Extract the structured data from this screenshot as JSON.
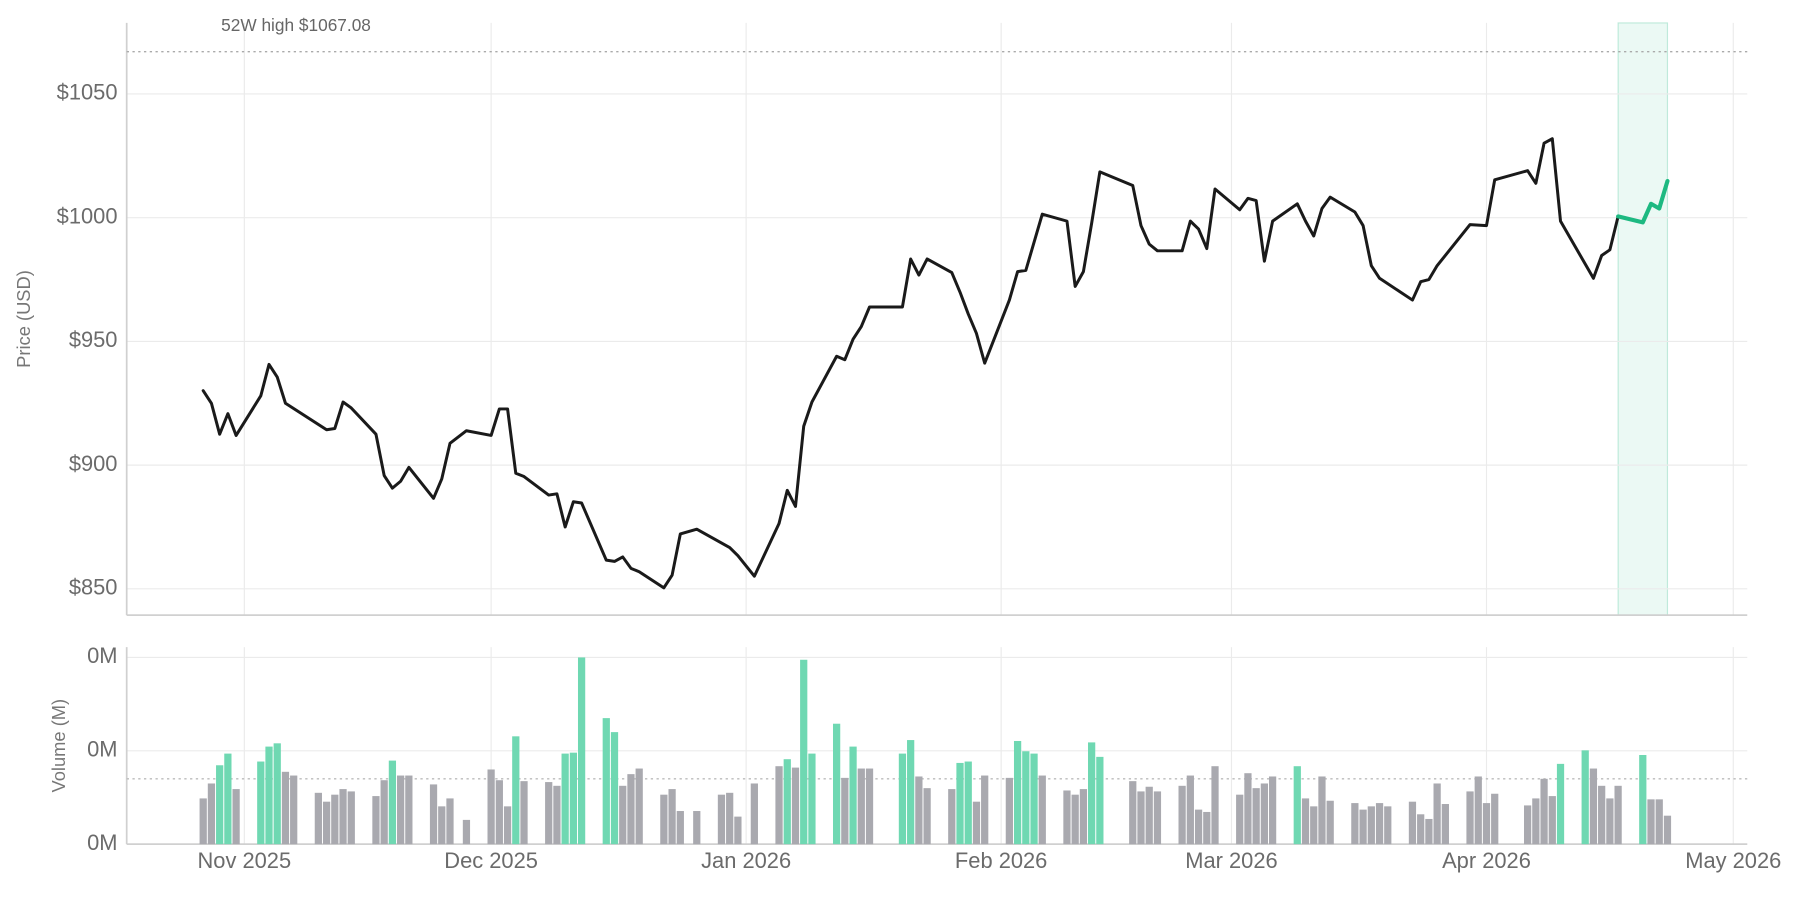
{
  "chart_data": [
    {
      "type": "line",
      "ylabel": "Price (USD)",
      "xlim": [
        16.7,
        213.7
      ],
      "xticks": [
        31,
        61,
        92,
        123,
        151,
        182,
        212
      ],
      "ylim": [
        839.4,
        1078.7
      ],
      "yticks": [
        {
          "value": 850,
          "label": "$850"
        },
        {
          "value": 900,
          "label": "$900"
        },
        {
          "value": 950,
          "label": "$950"
        },
        {
          "value": 1000,
          "label": "$1000"
        },
        {
          "value": 1050,
          "label": "$1050"
        }
      ],
      "grid": true,
      "highlight_x": [
        198,
        204
      ],
      "annotations": [
        {
          "text": "52W high $1067.08",
          "value": 1067.08
        }
      ],
      "x": [
        26,
        27,
        28,
        29,
        30,
        33,
        34,
        35,
        36,
        41,
        42,
        43,
        44,
        47,
        48,
        49,
        50,
        51,
        54,
        55,
        56,
        58,
        61,
        62,
        63,
        64,
        65,
        68,
        69,
        70,
        71,
        72,
        75,
        76,
        77,
        78,
        79,
        82,
        83,
        84,
        86,
        90,
        91,
        93,
        96,
        97,
        98,
        99,
        100,
        103,
        104,
        105,
        106,
        107,
        111,
        112,
        113,
        114,
        117,
        118,
        119,
        120,
        121,
        124,
        125,
        126,
        128,
        131,
        132,
        133,
        134,
        135,
        139,
        140,
        141,
        142,
        145,
        146,
        147,
        148,
        149,
        152,
        153,
        154,
        155,
        156,
        159,
        160,
        161,
        162,
        163,
        166,
        167,
        168,
        169,
        173,
        174,
        175,
        176,
        180,
        182,
        183,
        187,
        188,
        189,
        190,
        191,
        195,
        196,
        197,
        198,
        201,
        202,
        203,
        204
      ],
      "series": [
        {
          "color": "#1a1a1a",
          "values": [
            930.1,
            925.0,
            912.5,
            920.8,
            912.0,
            928.0,
            940.7,
            935.6,
            925.0,
            914.3,
            914.8,
            925.5,
            923.1,
            912.5,
            895.8,
            890.7,
            893.5,
            899.1,
            886.6,
            894.4,
            908.8,
            913.9,
            912.0,
            922.7,
            922.7,
            896.7,
            895.4,
            887.9,
            888.4,
            875.0,
            885.2,
            884.7,
            861.6,
            861.1,
            862.9,
            858.3,
            856.9,
            850.4,
            855.5,
            872.2,
            874.1,
            866.7,
            863.4,
            855.1,
            876.4,
            889.8,
            883.3,
            915.7,
            925.5,
            944.0,
            942.6,
            950.9,
            956.0,
            963.9,
            963.9,
            983.3,
            976.8,
            983.3,
            977.8,
            969.9,
            961.1,
            953.2,
            941.2,
            966.7,
            978.2,
            978.7,
            1001.4,
            998.6,
            972.2,
            978.2,
            997.7,
            1018.5,
            1013.0,
            996.8,
            989.3,
            986.6,
            986.6,
            998.6,
            995.4,
            987.5,
            1011.6,
            1003.2,
            1007.8,
            1006.9,
            982.4,
            998.6,
            1005.6,
            998.6,
            992.6,
            1003.7,
            1008.3,
            1002.3,
            996.8,
            980.6,
            975.5,
            966.7,
            974.1,
            975.0,
            980.6,
            997.2,
            996.8,
            1015.3,
            1019.0,
            1013.9,
            1030.1,
            1031.9,
            998.6,
            975.5,
            984.7,
            987.0,
            1000.5,
            null,
            null,
            null,
            null
          ]
        },
        {
          "color": "#1db981",
          "values": [
            null,
            null,
            null,
            null,
            null,
            null,
            null,
            null,
            null,
            null,
            null,
            null,
            null,
            null,
            null,
            null,
            null,
            null,
            null,
            null,
            null,
            null,
            null,
            null,
            null,
            null,
            null,
            null,
            null,
            null,
            null,
            null,
            null,
            null,
            null,
            null,
            null,
            null,
            null,
            null,
            null,
            null,
            null,
            null,
            null,
            null,
            null,
            null,
            null,
            null,
            null,
            null,
            null,
            null,
            null,
            null,
            null,
            null,
            null,
            null,
            null,
            null,
            null,
            null,
            null,
            null,
            null,
            null,
            null,
            null,
            null,
            null,
            null,
            null,
            null,
            null,
            null,
            null,
            null,
            null,
            null,
            null,
            null,
            null,
            null,
            null,
            null,
            null,
            null,
            null,
            null,
            null,
            null,
            null,
            null,
            null,
            null,
            null,
            null,
            null,
            null,
            null,
            null,
            null,
            null,
            null,
            null,
            null,
            null,
            null,
            1000.5,
            998.1,
            1005.6,
            1003.7,
            1014.8
          ]
        }
      ]
    },
    {
      "type": "bar",
      "ylabel": "Volume (M)",
      "xlim": [
        16.7,
        213.7
      ],
      "xticks": [
        {
          "value": 31,
          "label": "Nov 2025"
        },
        {
          "value": 61,
          "label": "Dec 2025"
        },
        {
          "value": 92,
          "label": "Jan 2026"
        },
        {
          "value": 123,
          "label": "Feb 2026"
        },
        {
          "value": 151,
          "label": "Mar 2026"
        },
        {
          "value": 182,
          "label": "Apr 2026"
        },
        {
          "value": 212,
          "label": "May 2026"
        }
      ],
      "ylim": [
        0,
        0.422
      ],
      "yticks": [
        {
          "value": 0,
          "label": "0M"
        },
        {
          "value": 0.2,
          "label": "0M"
        },
        {
          "value": 0.4,
          "label": "0M"
        }
      ],
      "grid": true,
      "reference_line": 0.14,
      "x": [
        26,
        27,
        28,
        29,
        30,
        33,
        34,
        35,
        36,
        37,
        40,
        41,
        42,
        43,
        44,
        47,
        48,
        49,
        50,
        51,
        54,
        55,
        56,
        58,
        61,
        62,
        63,
        64,
        65,
        68,
        69,
        70,
        71,
        72,
        75,
        76,
        77,
        78,
        79,
        82,
        83,
        84,
        86,
        89,
        90,
        91,
        93,
        96,
        97,
        98,
        99,
        100,
        103,
        104,
        105,
        106,
        107,
        111,
        112,
        113,
        114,
        117,
        118,
        119,
        120,
        121,
        124,
        125,
        126,
        127,
        128,
        131,
        132,
        133,
        134,
        135,
        139,
        140,
        141,
        142,
        145,
        146,
        147,
        148,
        149,
        152,
        153,
        154,
        155,
        156,
        159,
        160,
        161,
        162,
        163,
        166,
        167,
        168,
        169,
        170,
        173,
        174,
        175,
        176,
        177,
        180,
        181,
        182,
        183,
        187,
        188,
        189,
        190,
        191,
        194,
        195,
        196,
        197,
        198,
        201,
        202,
        203,
        204
      ],
      "series": [
        {
          "color": "#a9a9af",
          "values": [
            0.098,
            0.13,
            null,
            null,
            0.118,
            null,
            null,
            null,
            0.155,
            0.147,
            0.11,
            0.091,
            0.106,
            0.118,
            0.113,
            0.103,
            0.137,
            null,
            0.147,
            0.147,
            0.128,
            0.081,
            0.098,
            0.052,
            0.16,
            0.137,
            0.081,
            null,
            0.135,
            0.133,
            0.125,
            null,
            null,
            null,
            null,
            null,
            0.125,
            0.15,
            0.162,
            0.106,
            0.118,
            0.071,
            0.071,
            0.106,
            0.11,
            0.059,
            0.13,
            0.167,
            null,
            0.164,
            null,
            null,
            null,
            0.142,
            null,
            0.162,
            0.162,
            null,
            null,
            0.145,
            0.12,
            0.118,
            null,
            null,
            0.091,
            0.147,
            0.142,
            null,
            null,
            null,
            0.147,
            0.115,
            0.106,
            0.118,
            null,
            null,
            0.135,
            0.113,
            0.123,
            0.113,
            0.125,
            0.147,
            0.074,
            0.069,
            0.167,
            0.106,
            0.152,
            0.12,
            0.13,
            0.145,
            null,
            0.098,
            0.081,
            0.145,
            0.093,
            0.088,
            0.074,
            0.081,
            0.088,
            0.081,
            0.091,
            0.064,
            0.054,
            0.13,
            0.086,
            0.113,
            0.145,
            0.088,
            0.108,
            0.083,
            0.098,
            0.14,
            0.103,
            null,
            null,
            0.162,
            0.125,
            0.098,
            0.125,
            null,
            0.096,
            0.096,
            0.061
          ]
        },
        {
          "color": "#6fd8b2",
          "values": [
            null,
            null,
            0.169,
            0.194,
            null,
            0.177,
            0.209,
            0.216,
            null,
            null,
            null,
            null,
            null,
            null,
            null,
            null,
            null,
            0.179,
            null,
            null,
            null,
            null,
            null,
            null,
            null,
            null,
            null,
            0.231,
            null,
            null,
            null,
            0.194,
            0.196,
            0.4,
            0.27,
            0.24,
            null,
            null,
            null,
            null,
            null,
            null,
            null,
            null,
            null,
            null,
            null,
            null,
            0.182,
            null,
            0.395,
            0.194,
            0.258,
            null,
            0.209,
            null,
            null,
            0.194,
            0.223,
            null,
            null,
            null,
            0.174,
            0.177,
            null,
            null,
            null,
            0.221,
            0.199,
            0.194,
            null,
            null,
            null,
            null,
            0.218,
            0.187,
            null,
            null,
            null,
            null,
            null,
            null,
            null,
            null,
            null,
            null,
            null,
            null,
            null,
            null,
            0.167,
            null,
            null,
            null,
            null,
            null,
            null,
            null,
            null,
            null,
            null,
            null,
            null,
            null,
            null,
            null,
            null,
            null,
            null,
            null,
            null,
            null,
            null,
            0.172,
            0.201,
            null,
            null,
            null,
            null,
            0.191,
            null,
            null,
            null
          ]
        }
      ]
    }
  ]
}
